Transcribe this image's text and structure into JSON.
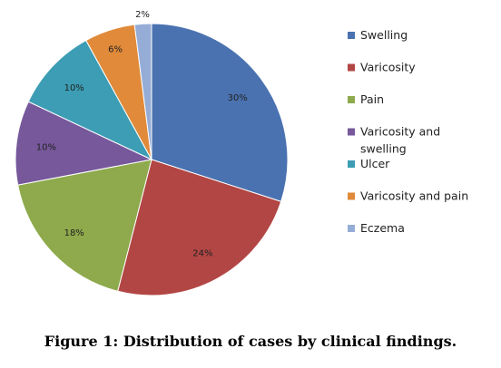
{
  "chart_data": {
    "type": "pie",
    "categories": [
      "Swelling",
      "Varicosity",
      "Pain",
      "Varicosity and swelling",
      "Ulcer",
      "Varicosity and pain",
      "Eczema"
    ],
    "legend_lines": [
      [
        "Swelling"
      ],
      [
        "Varicosity"
      ],
      [
        "Pain"
      ],
      [
        "Varicosity and",
        "swelling"
      ],
      [
        "Ulcer"
      ],
      [
        "Varicosity and pain"
      ],
      [
        "Eczema"
      ]
    ],
    "values": [
      30,
      24,
      18,
      10,
      10,
      6,
      2
    ],
    "data_labels": [
      "30%",
      "24%",
      "18%",
      "10%",
      "10%",
      "6%",
      "2%"
    ],
    "colors": [
      "#4a72b0",
      "#b24644",
      "#8eaa4c",
      "#76589b",
      "#3c9db4",
      "#e08a3a",
      "#95add6"
    ],
    "legend_position": "right",
    "start": "12 o'clock",
    "direction": "clockwise"
  },
  "caption": "Figure 1: Distribution of cases by clinical findings."
}
